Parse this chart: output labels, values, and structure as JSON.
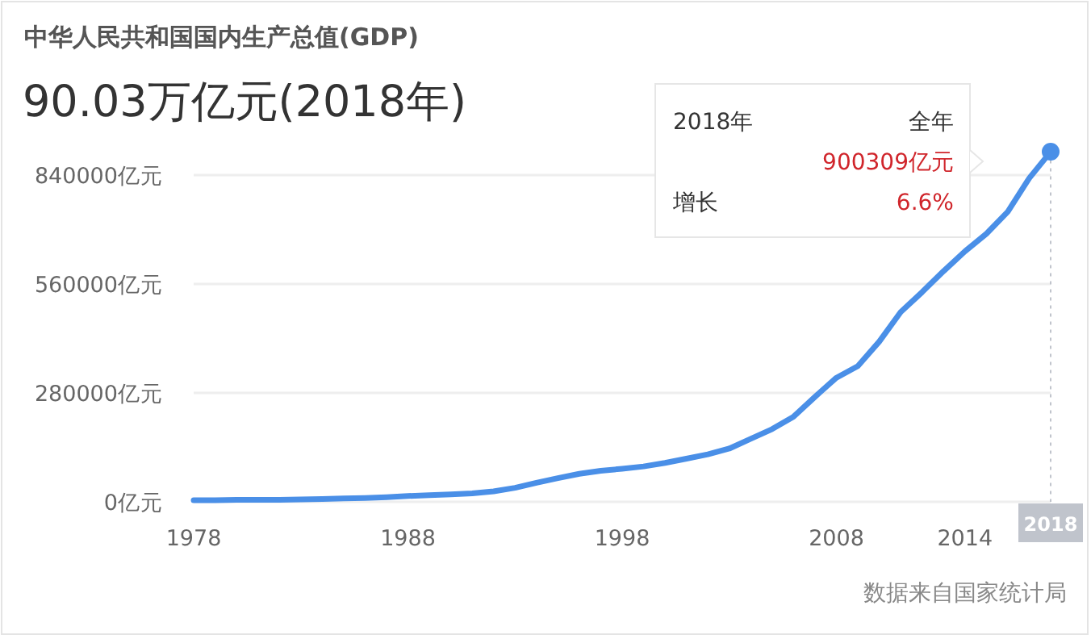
{
  "chart_data": {
    "type": "line",
    "title": "中华人民共和国国内生产总值(GDP)",
    "subtitle": "90.03万亿元(2018年)",
    "x": [
      1978,
      1979,
      1980,
      1981,
      1982,
      1983,
      1984,
      1985,
      1986,
      1987,
      1988,
      1989,
      1990,
      1991,
      1992,
      1993,
      1994,
      1995,
      1996,
      1997,
      1998,
      1999,
      2000,
      2001,
      2002,
      2003,
      2004,
      2005,
      2006,
      2007,
      2008,
      2009,
      2010,
      2011,
      2012,
      2013,
      2014,
      2015,
      2016,
      2017,
      2018
    ],
    "series": [
      {
        "color": "#4a8fe7",
        "values": [
          4000,
          4000,
          5000,
          5000,
          5000,
          6000,
          7000,
          9000,
          10000,
          12000,
          15000,
          17000,
          19000,
          22000,
          27000,
          36000,
          49000,
          61000,
          72000,
          80000,
          85000,
          91000,
          100000,
          111000,
          122000,
          137000,
          162000,
          187000,
          219000,
          270000,
          319000,
          349000,
          412000,
          488000,
          539000,
          593000,
          644000,
          689000,
          746000,
          832000,
          900000
        ]
      },
      {
        "type": "scatter",
        "color": "#4a8fe7",
        "x": [
          2018
        ],
        "values": [
          900000
        ],
        "marker": "circle"
      }
    ],
    "xlim": [
      1978,
      2018
    ],
    "xticks": [
      1978,
      1988,
      1998,
      2008,
      2014
    ],
    "ylim": [
      0,
      920000
    ],
    "yticks": [
      {
        "value": 0,
        "label": "0亿元"
      },
      {
        "value": 280000,
        "label": "280000亿元"
      },
      {
        "value": 560000,
        "label": "560000亿元"
      },
      {
        "value": 840000,
        "label": "840000亿元"
      }
    ],
    "grid": "y",
    "ref_lines": [
      {
        "axis": "x",
        "value": 2018,
        "label": "2018",
        "line_style": "dotted",
        "color": "#c0c4cc"
      }
    ],
    "annotations": [
      "2018年",
      "全年",
      "900309亿元",
      "增长",
      "6.6%",
      "数据来自国家统计局"
    ]
  }
}
